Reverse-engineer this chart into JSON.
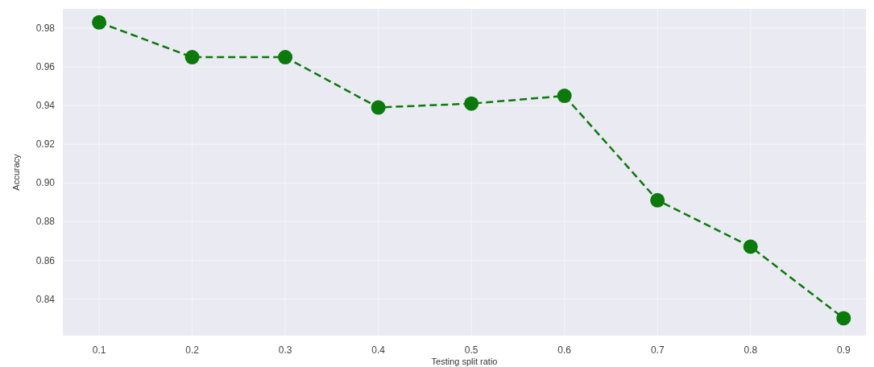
{
  "chart_data": {
    "type": "line",
    "xlabel": "Testing split ratio",
    "ylabel": "Accuracy",
    "x": [
      0.1,
      0.2,
      0.3,
      0.4,
      0.5,
      0.6,
      0.7,
      0.8,
      0.9
    ],
    "series": [
      {
        "color": "#0a7a0a",
        "values": [
          0.983,
          0.965,
          0.965,
          0.939,
          0.941,
          0.945,
          0.891,
          0.867,
          0.83
        ]
      }
    ],
    "xlim": [
      0.061,
      0.924
    ],
    "ylim": [
      0.821,
      0.99
    ],
    "xticks": [
      0.1,
      0.2,
      0.3,
      0.4,
      0.5,
      0.6,
      0.7,
      0.8,
      0.9
    ],
    "yticks": [
      0.84,
      0.86,
      0.88,
      {
        "value": 0.9,
        "label": "0.90"
      },
      0.92,
      0.94,
      0.96,
      0.98
    ],
    "grid": true,
    "marker": "circle",
    "line_style": "dashed"
  }
}
